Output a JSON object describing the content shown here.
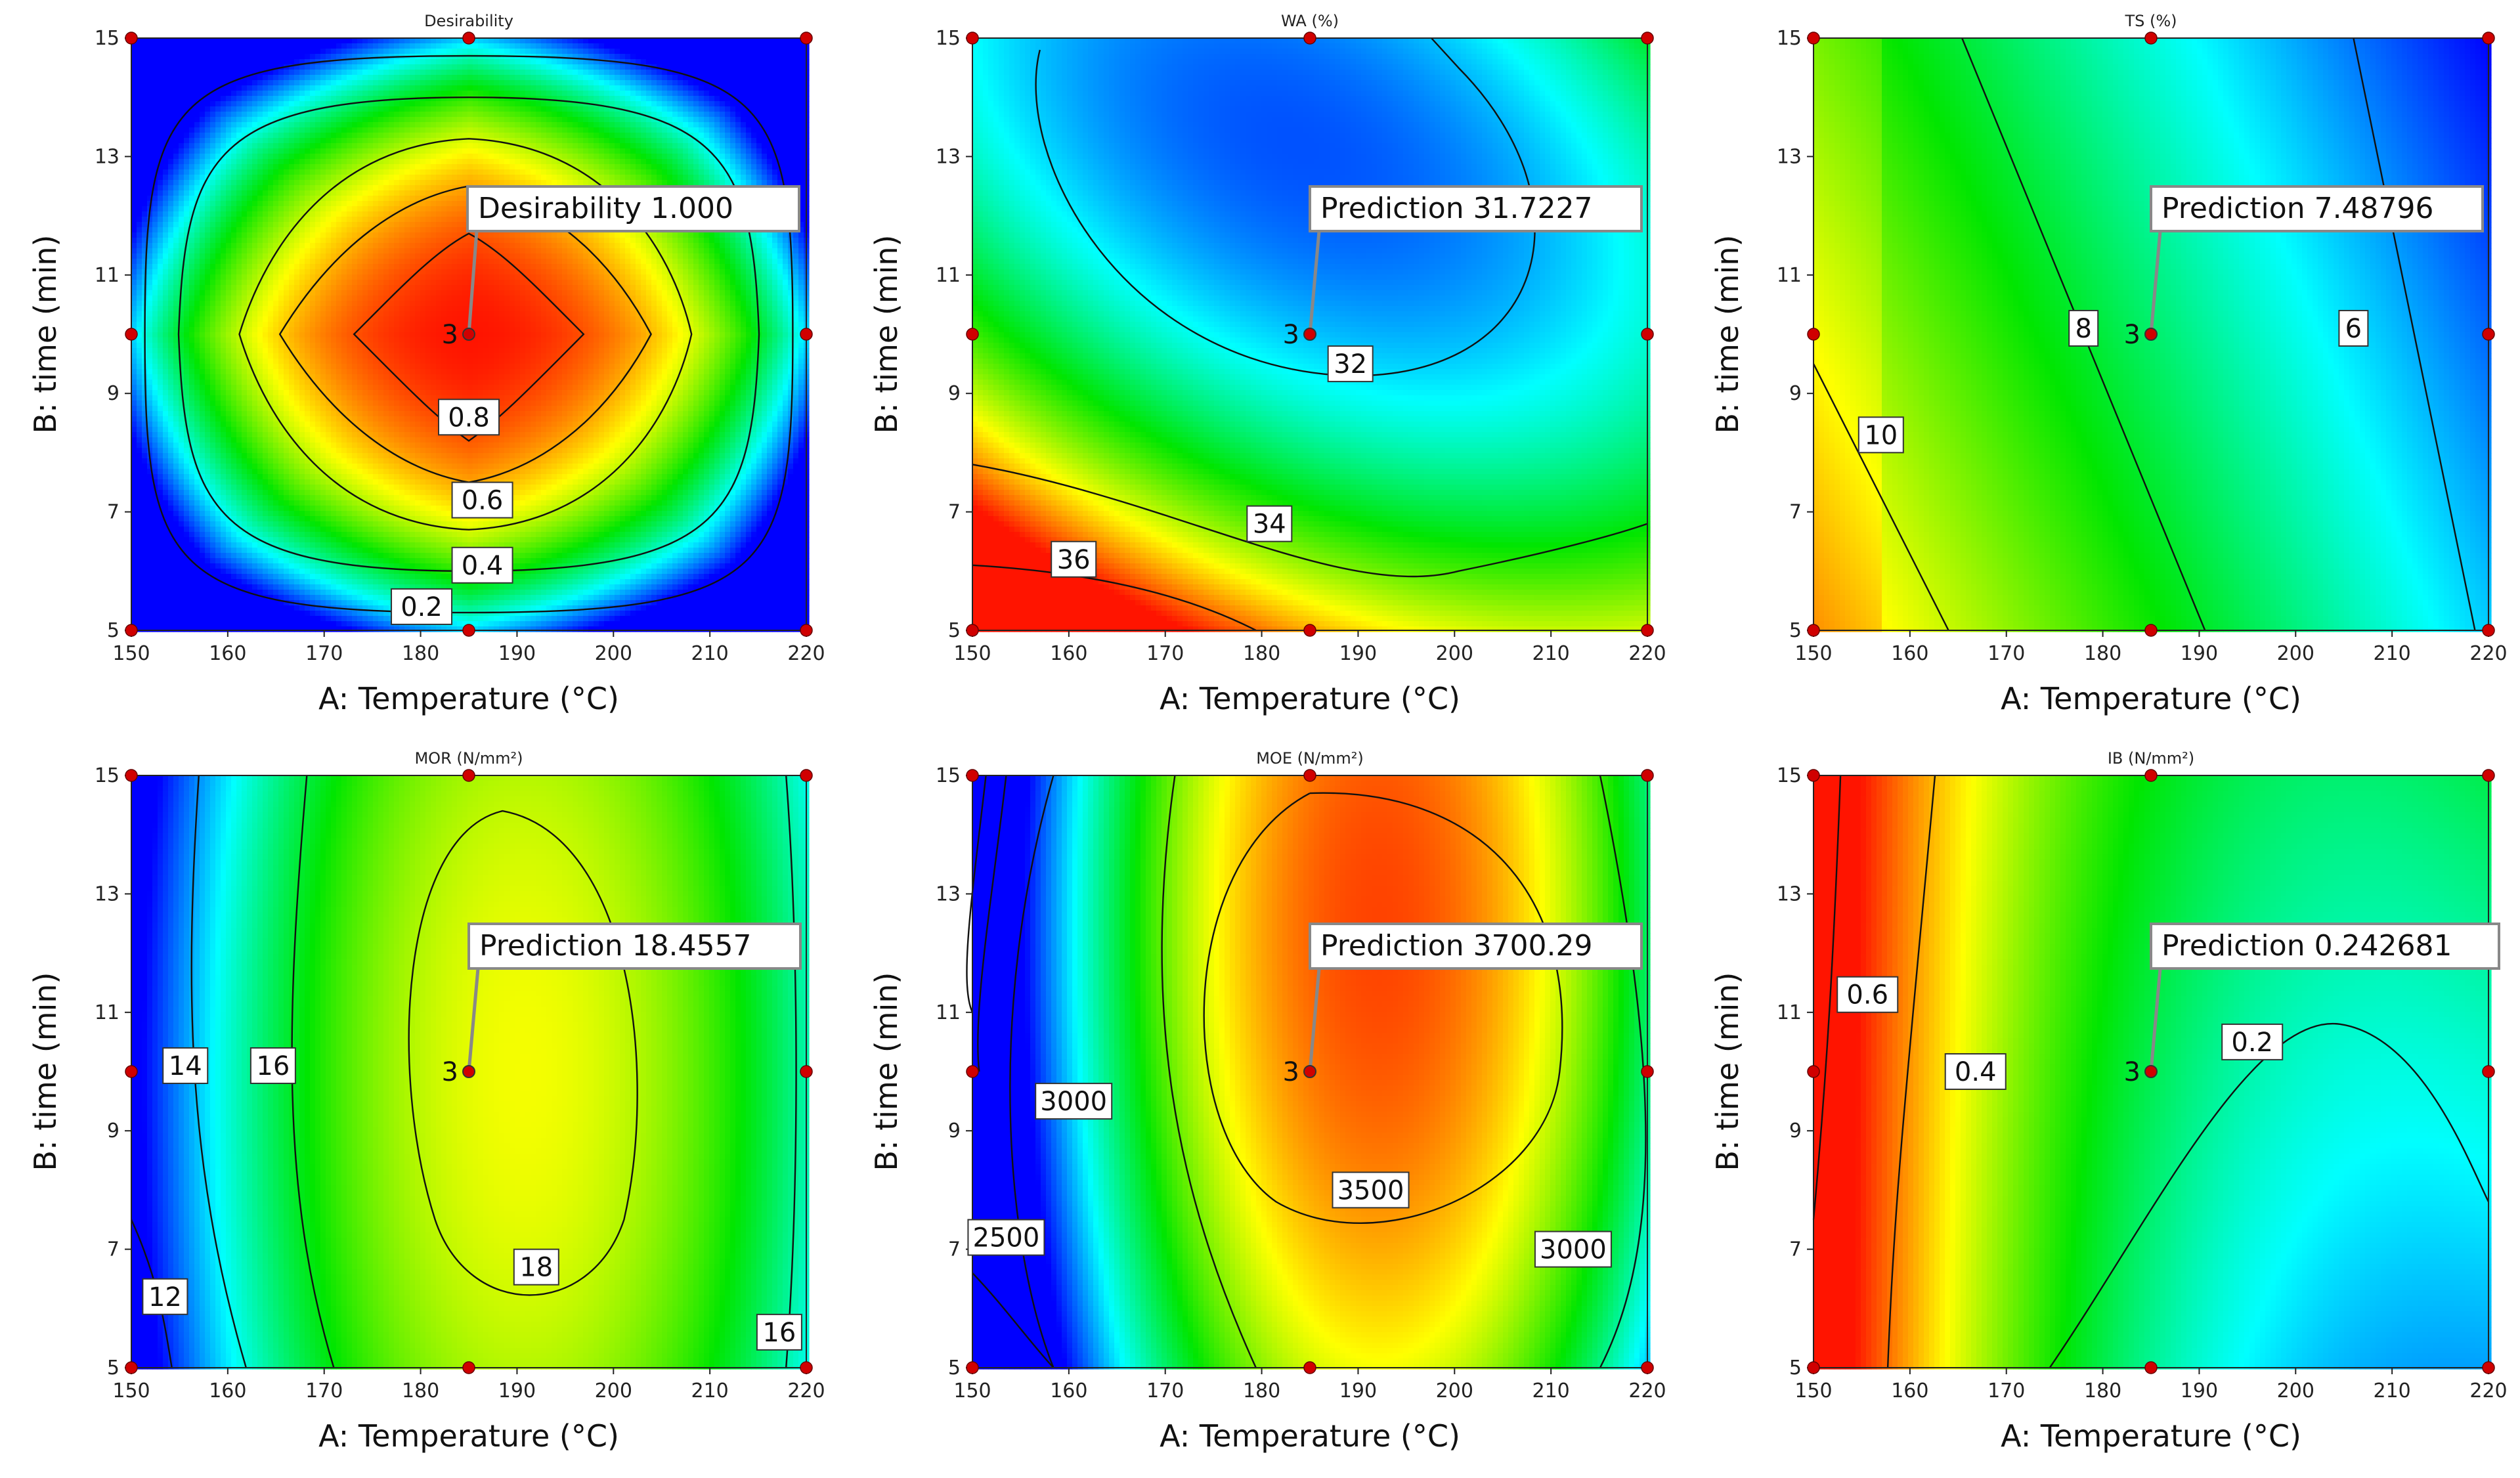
{
  "chart_data": [
    {
      "type": "heatmap",
      "title": "Desirability",
      "xlabel": "A: Temperature (°C)",
      "ylabel": "B: time (min)",
      "xlim": [
        150,
        220
      ],
      "ylim": [
        5,
        15
      ],
      "xticks": [
        "150",
        "160",
        "170",
        "180",
        "190",
        "200",
        "210",
        "220"
      ],
      "yticks": [
        "5",
        "7",
        "9",
        "11",
        "13",
        "15"
      ],
      "contour_labels": [
        "0.2",
        "0.4",
        "0.6",
        "0.8"
      ],
      "prediction": {
        "label": "Desirability",
        "value": "1.000",
        "x": 185,
        "y": 10,
        "replicates": "3"
      },
      "design_points": [
        [
          150,
          5
        ],
        [
          185,
          5
        ],
        [
          220,
          5
        ],
        [
          150,
          10
        ],
        [
          220,
          10
        ],
        [
          150,
          15
        ],
        [
          185,
          15
        ],
        [
          220,
          15
        ]
      ]
    },
    {
      "type": "heatmap",
      "title": "WA (%)",
      "xlabel": "A: Temperature (°C)",
      "ylabel": "B: time (min)",
      "xlim": [
        150,
        220
      ],
      "ylim": [
        5,
        15
      ],
      "xticks": [
        "150",
        "160",
        "170",
        "180",
        "190",
        "200",
        "210",
        "220"
      ],
      "yticks": [
        "5",
        "7",
        "9",
        "11",
        "13",
        "15"
      ],
      "contour_labels": [
        "32",
        "34",
        "36"
      ],
      "prediction": {
        "label": "Prediction",
        "value": "31.7227",
        "x": 185,
        "y": 10,
        "replicates": "3"
      },
      "design_points": [
        [
          150,
          5
        ],
        [
          185,
          5
        ],
        [
          220,
          5
        ],
        [
          150,
          10
        ],
        [
          220,
          10
        ],
        [
          150,
          15
        ],
        [
          185,
          15
        ],
        [
          220,
          15
        ]
      ]
    },
    {
      "type": "heatmap",
      "title": "TS (%)",
      "xlabel": "A: Temperature (°C)",
      "ylabel": "B: time (min)",
      "xlim": [
        150,
        220
      ],
      "ylim": [
        5,
        15
      ],
      "xticks": [
        "150",
        "160",
        "170",
        "180",
        "190",
        "200",
        "210",
        "220"
      ],
      "yticks": [
        "5",
        "7",
        "9",
        "11",
        "13",
        "15"
      ],
      "contour_labels": [
        "6",
        "8",
        "10"
      ],
      "prediction": {
        "label": "Prediction",
        "value": "7.48796",
        "x": 185,
        "y": 10,
        "replicates": "3"
      },
      "design_points": [
        [
          150,
          5
        ],
        [
          185,
          5
        ],
        [
          220,
          5
        ],
        [
          150,
          10
        ],
        [
          220,
          10
        ],
        [
          150,
          15
        ],
        [
          185,
          15
        ],
        [
          220,
          15
        ]
      ]
    },
    {
      "type": "heatmap",
      "title": "MOR (N/mm²)",
      "xlabel": "A: Temperature (°C)",
      "ylabel": "B: time (min)",
      "xlim": [
        150,
        220
      ],
      "ylim": [
        5,
        15
      ],
      "xticks": [
        "150",
        "160",
        "170",
        "180",
        "190",
        "200",
        "210",
        "220"
      ],
      "yticks": [
        "5",
        "7",
        "9",
        "11",
        "13",
        "15"
      ],
      "contour_labels": [
        "12",
        "14",
        "16",
        "18",
        "16"
      ],
      "prediction": {
        "label": "Prediction",
        "value": "18.4557",
        "x": 185,
        "y": 10,
        "replicates": "3"
      },
      "design_points": [
        [
          150,
          5
        ],
        [
          185,
          5
        ],
        [
          220,
          5
        ],
        [
          150,
          10
        ],
        [
          220,
          10
        ],
        [
          150,
          15
        ],
        [
          185,
          15
        ],
        [
          220,
          15
        ]
      ]
    },
    {
      "type": "heatmap",
      "title": "MOE (N/mm²)",
      "xlabel": "A: Temperature (°C)",
      "ylabel": "B: time (min)",
      "xlim": [
        150,
        220
      ],
      "ylim": [
        5,
        15
      ],
      "xticks": [
        "150",
        "160",
        "170",
        "180",
        "190",
        "200",
        "210",
        "220"
      ],
      "yticks": [
        "5",
        "7",
        "9",
        "11",
        "13",
        "15"
      ],
      "contour_labels": [
        "2500",
        "3000",
        "3500",
        "3000"
      ],
      "prediction": {
        "label": "Prediction",
        "value": "3700.29",
        "x": 185,
        "y": 10,
        "replicates": "3"
      },
      "design_points": [
        [
          150,
          5
        ],
        [
          185,
          5
        ],
        [
          220,
          5
        ],
        [
          150,
          10
        ],
        [
          220,
          10
        ],
        [
          150,
          15
        ],
        [
          185,
          15
        ],
        [
          220,
          15
        ]
      ]
    },
    {
      "type": "heatmap",
      "title": "IB (N/mm²)",
      "xlabel": "A: Temperature (°C)",
      "ylabel": "B: time (min)",
      "xlim": [
        150,
        220
      ],
      "ylim": [
        5,
        15
      ],
      "xticks": [
        "150",
        "160",
        "170",
        "180",
        "190",
        "200",
        "210",
        "220"
      ],
      "yticks": [
        "5",
        "7",
        "9",
        "11",
        "13",
        "15"
      ],
      "contour_labels": [
        "0.6",
        "0.4",
        "0.2"
      ],
      "prediction": {
        "label": "Prediction",
        "value": "0.242681",
        "x": 185,
        "y": 10,
        "replicates": "3"
      },
      "design_points": [
        [
          150,
          5
        ],
        [
          185,
          5
        ],
        [
          220,
          5
        ],
        [
          150,
          10
        ],
        [
          220,
          10
        ],
        [
          150,
          15
        ],
        [
          185,
          15
        ],
        [
          220,
          15
        ]
      ]
    }
  ]
}
